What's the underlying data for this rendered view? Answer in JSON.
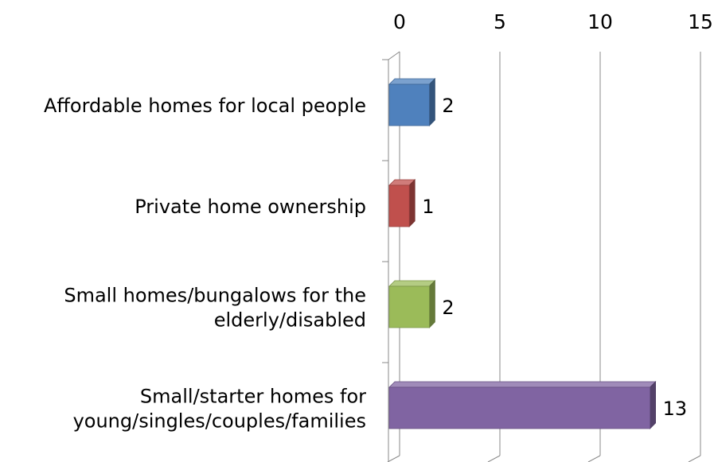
{
  "chart_data": {
    "type": "bar",
    "orientation": "horizontal",
    "style": "3d",
    "title": "",
    "xlabel": "",
    "ylabel": "",
    "categories": [
      "Affordable homes for local people",
      "Private home ownership",
      "Small homes/bungalows for the elderly/disabled",
      "Small/starter homes for young/singles/couples/families"
    ],
    "category_lines": [
      [
        "Affordable homes for local people"
      ],
      [
        "Private home ownership"
      ],
      [
        "Small homes/bungalows for the",
        "elderly/disabled"
      ],
      [
        "Small/starter homes for",
        "young/singles/couples/families"
      ]
    ],
    "values": [
      2,
      1,
      2,
      13
    ],
    "data_labels": [
      "2",
      "1",
      "2",
      "13"
    ],
    "colors": [
      "#4f81bd",
      "#c0504d",
      "#9bbb59",
      "#8064a2"
    ],
    "xlim": [
      0,
      15
    ],
    "x_ticks": [
      0,
      5,
      10,
      15
    ],
    "x_tick_labels": [
      "0",
      "5",
      "10",
      "15"
    ],
    "x_axis_position": "top",
    "gridlines": true,
    "legend": "none"
  }
}
